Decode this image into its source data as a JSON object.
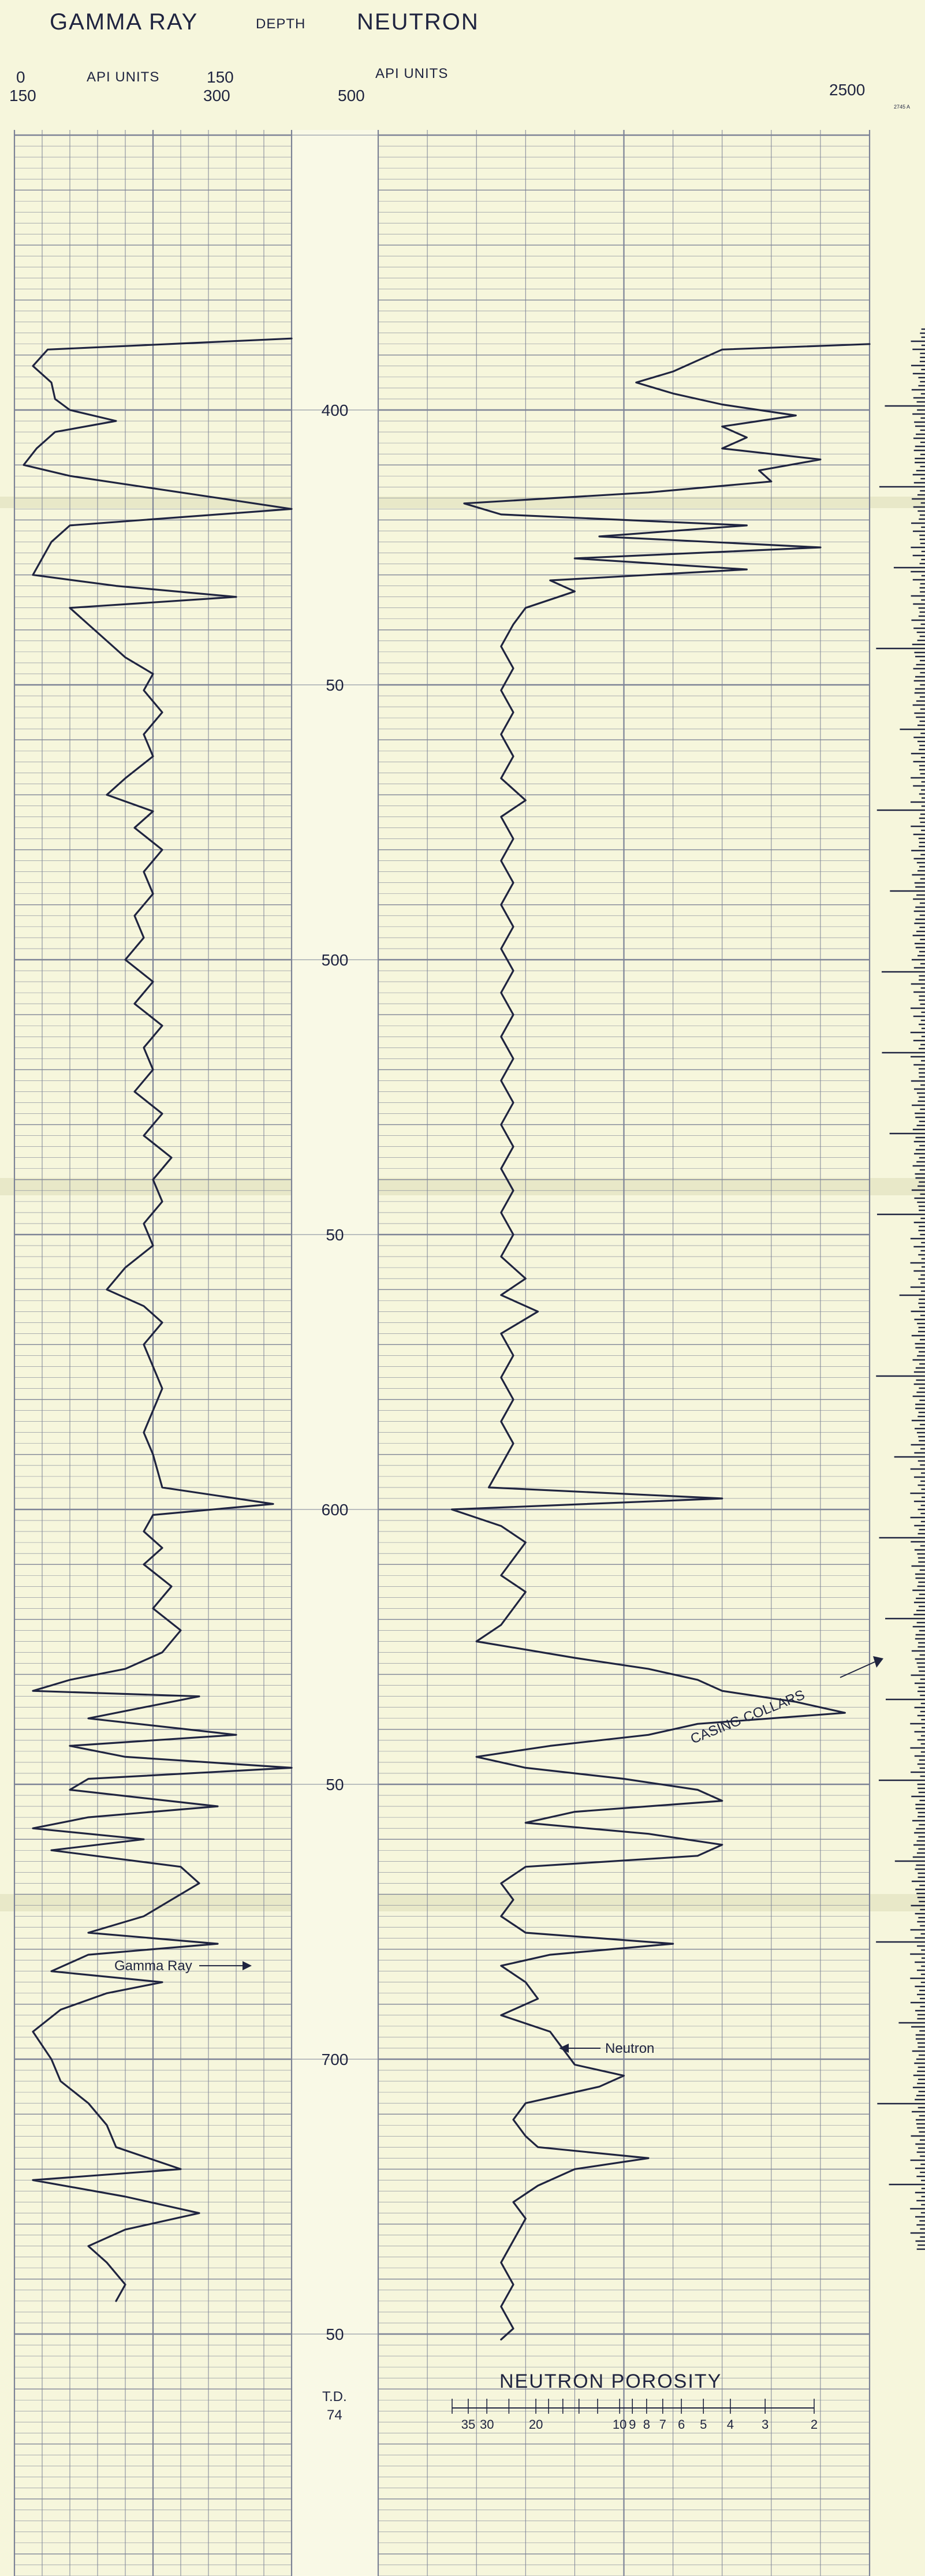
{
  "header": {
    "gamma_ray_title": "GAMMA RAY",
    "depth_title": "DEPTH",
    "neutron_title": "NEUTRON",
    "gr_scale_left_top": "0",
    "gr_scale_left_bottom": "150",
    "gr_units": "API UNITS",
    "gr_scale_right_top": "150",
    "gr_scale_right_bottom": "300",
    "neutron_scale_left": "500",
    "neutron_units": "API UNITS",
    "neutron_scale_right": "2500",
    "corner_note": "2745 A"
  },
  "chart_data": {
    "type": "line",
    "depth_unit": "ft",
    "depth_range": [
      365,
      760
    ],
    "depth_tick_labels": [
      {
        "depth": 400,
        "label": "400"
      },
      {
        "depth": 450,
        "label": "50"
      },
      {
        "depth": 500,
        "label": "500"
      },
      {
        "depth": 550,
        "label": "50"
      },
      {
        "depth": 600,
        "label": "600"
      },
      {
        "depth": 650,
        "label": "50"
      },
      {
        "depth": 700,
        "label": "700"
      },
      {
        "depth": 750,
        "label": "50"
      }
    ],
    "gamma_ray": {
      "range": [
        0,
        150
      ],
      "points": [
        [
          387,
          150
        ],
        [
          389,
          18
        ],
        [
          392,
          10
        ],
        [
          395,
          20
        ],
        [
          398,
          22
        ],
        [
          400,
          30
        ],
        [
          402,
          55
        ],
        [
          404,
          22
        ],
        [
          407,
          12
        ],
        [
          410,
          5
        ],
        [
          412,
          30
        ],
        [
          414,
          70
        ],
        [
          416,
          110
        ],
        [
          418,
          150
        ],
        [
          421,
          30
        ],
        [
          424,
          20
        ],
        [
          427,
          15
        ],
        [
          430,
          10
        ],
        [
          432,
          55
        ],
        [
          434,
          120
        ],
        [
          436,
          30
        ],
        [
          439,
          40
        ],
        [
          442,
          50
        ],
        [
          445,
          60
        ],
        [
          448,
          75
        ],
        [
          451,
          70
        ],
        [
          455,
          80
        ],
        [
          459,
          70
        ],
        [
          463,
          75
        ],
        [
          467,
          60
        ],
        [
          470,
          50
        ],
        [
          473,
          75
        ],
        [
          476,
          65
        ],
        [
          480,
          80
        ],
        [
          484,
          70
        ],
        [
          488,
          75
        ],
        [
          492,
          65
        ],
        [
          496,
          70
        ],
        [
          500,
          60
        ],
        [
          504,
          75
        ],
        [
          508,
          65
        ],
        [
          512,
          80
        ],
        [
          516,
          70
        ],
        [
          520,
          75
        ],
        [
          524,
          65
        ],
        [
          528,
          80
        ],
        [
          532,
          70
        ],
        [
          536,
          85
        ],
        [
          540,
          75
        ],
        [
          544,
          80
        ],
        [
          548,
          70
        ],
        [
          552,
          75
        ],
        [
          556,
          60
        ],
        [
          560,
          50
        ],
        [
          563,
          70
        ],
        [
          566,
          80
        ],
        [
          570,
          70
        ],
        [
          574,
          75
        ],
        [
          578,
          80
        ],
        [
          582,
          75
        ],
        [
          586,
          70
        ],
        [
          590,
          75
        ],
        [
          596,
          80
        ],
        [
          599,
          140
        ],
        [
          601,
          75
        ],
        [
          604,
          70
        ],
        [
          607,
          80
        ],
        [
          610,
          70
        ],
        [
          614,
          85
        ],
        [
          618,
          75
        ],
        [
          622,
          90
        ],
        [
          626,
          80
        ],
        [
          629,
          60
        ],
        [
          631,
          30
        ],
        [
          633,
          10
        ],
        [
          634,
          100
        ],
        [
          636,
          70
        ],
        [
          638,
          40
        ],
        [
          641,
          120
        ],
        [
          643,
          30
        ],
        [
          645,
          60
        ],
        [
          647,
          150
        ],
        [
          649,
          40
        ],
        [
          651,
          30
        ],
        [
          654,
          110
        ],
        [
          656,
          40
        ],
        [
          658,
          10
        ],
        [
          660,
          70
        ],
        [
          662,
          20
        ],
        [
          665,
          90
        ],
        [
          668,
          100
        ],
        [
          671,
          85
        ],
        [
          674,
          70
        ],
        [
          677,
          40
        ],
        [
          679,
          110
        ],
        [
          681,
          40
        ],
        [
          684,
          20
        ],
        [
          686,
          80
        ],
        [
          688,
          50
        ],
        [
          691,
          25
        ],
        [
          695,
          10
        ],
        [
          700,
          20
        ],
        [
          704,
          25
        ],
        [
          708,
          40
        ],
        [
          712,
          50
        ],
        [
          716,
          55
        ],
        [
          720,
          90
        ],
        [
          722,
          10
        ],
        [
          725,
          60
        ],
        [
          728,
          100
        ],
        [
          731,
          60
        ],
        [
          734,
          40
        ],
        [
          737,
          50
        ],
        [
          741,
          60
        ],
        [
          744,
          55
        ]
      ]
    },
    "neutron": {
      "range": [
        500,
        2500
      ],
      "points": [
        [
          388,
          2500
        ],
        [
          389,
          1900
        ],
        [
          391,
          1800
        ],
        [
          393,
          1700
        ],
        [
          395,
          1550
        ],
        [
          397,
          1700
        ],
        [
          399,
          1900
        ],
        [
          401,
          2200
        ],
        [
          403,
          1900
        ],
        [
          405,
          2000
        ],
        [
          407,
          1900
        ],
        [
          409,
          2300
        ],
        [
          411,
          2050
        ],
        [
          413,
          2100
        ],
        [
          415,
          1600
        ],
        [
          417,
          850
        ],
        [
          419,
          1000
        ],
        [
          421,
          2000
        ],
        [
          423,
          1400
        ],
        [
          425,
          2300
        ],
        [
          427,
          1300
        ],
        [
          429,
          2000
        ],
        [
          431,
          1200
        ],
        [
          433,
          1300
        ],
        [
          436,
          1100
        ],
        [
          439,
          1050
        ],
        [
          443,
          1000
        ],
        [
          447,
          1050
        ],
        [
          451,
          1000
        ],
        [
          455,
          1050
        ],
        [
          459,
          1000
        ],
        [
          463,
          1050
        ],
        [
          467,
          1000
        ],
        [
          471,
          1100
        ],
        [
          474,
          1000
        ],
        [
          478,
          1050
        ],
        [
          482,
          1000
        ],
        [
          486,
          1050
        ],
        [
          490,
          1000
        ],
        [
          494,
          1050
        ],
        [
          498,
          1000
        ],
        [
          502,
          1050
        ],
        [
          506,
          1000
        ],
        [
          510,
          1050
        ],
        [
          514,
          1000
        ],
        [
          518,
          1050
        ],
        [
          522,
          1000
        ],
        [
          526,
          1050
        ],
        [
          530,
          1000
        ],
        [
          534,
          1050
        ],
        [
          538,
          1000
        ],
        [
          542,
          1050
        ],
        [
          546,
          1000
        ],
        [
          550,
          1050
        ],
        [
          554,
          1000
        ],
        [
          558,
          1100
        ],
        [
          561,
          1000
        ],
        [
          564,
          1150
        ],
        [
          568,
          1000
        ],
        [
          572,
          1050
        ],
        [
          576,
          1000
        ],
        [
          580,
          1050
        ],
        [
          584,
          1000
        ],
        [
          588,
          1050
        ],
        [
          592,
          1000
        ],
        [
          596,
          950
        ],
        [
          598,
          1900
        ],
        [
          600,
          800
        ],
        [
          603,
          1000
        ],
        [
          606,
          1100
        ],
        [
          609,
          1050
        ],
        [
          612,
          1000
        ],
        [
          615,
          1100
        ],
        [
          618,
          1050
        ],
        [
          621,
          1000
        ],
        [
          624,
          900
        ],
        [
          627,
          1300
        ],
        [
          629,
          1600
        ],
        [
          631,
          1800
        ],
        [
          633,
          1900
        ],
        [
          635,
          2200
        ],
        [
          637,
          2400
        ],
        [
          639,
          1800
        ],
        [
          641,
          1600
        ],
        [
          643,
          1200
        ],
        [
          645,
          900
        ],
        [
          647,
          1100
        ],
        [
          649,
          1500
        ],
        [
          651,
          1800
        ],
        [
          653,
          1900
        ],
        [
          655,
          1300
        ],
        [
          657,
          1100
        ],
        [
          659,
          1600
        ],
        [
          661,
          1900
        ],
        [
          663,
          1800
        ],
        [
          665,
          1100
        ],
        [
          668,
          1000
        ],
        [
          671,
          1050
        ],
        [
          674,
          1000
        ],
        [
          677,
          1100
        ],
        [
          679,
          1700
        ],
        [
          681,
          1200
        ],
        [
          683,
          1000
        ],
        [
          686,
          1100
        ],
        [
          689,
          1150
        ],
        [
          692,
          1000
        ],
        [
          695,
          1200
        ],
        [
          698,
          1250
        ],
        [
          701,
          1300
        ],
        [
          703,
          1500
        ],
        [
          705,
          1400
        ],
        [
          708,
          1100
        ],
        [
          711,
          1050
        ],
        [
          714,
          1100
        ],
        [
          716,
          1150
        ],
        [
          718,
          1600
        ],
        [
          720,
          1300
        ],
        [
          723,
          1150
        ],
        [
          726,
          1050
        ],
        [
          729,
          1100
        ],
        [
          733,
          1050
        ],
        [
          737,
          1000
        ],
        [
          741,
          1050
        ],
        [
          745,
          1000
        ],
        [
          749,
          1050
        ],
        [
          751,
          1000
        ]
      ]
    },
    "annotations": {
      "gamma_ray_label": "Gamma Ray",
      "neutron_label": "Neutron",
      "casing_collars": "CASING COLLARS",
      "td_label": "T.D.",
      "td_value": "74"
    },
    "neutron_porosity_scale": {
      "title": "NEUTRON POROSITY",
      "ticks": [
        "35",
        "30",
        "20",
        "10",
        "9",
        "8",
        "7",
        "6",
        "5",
        "4",
        "3",
        "2"
      ]
    },
    "grid": true
  }
}
